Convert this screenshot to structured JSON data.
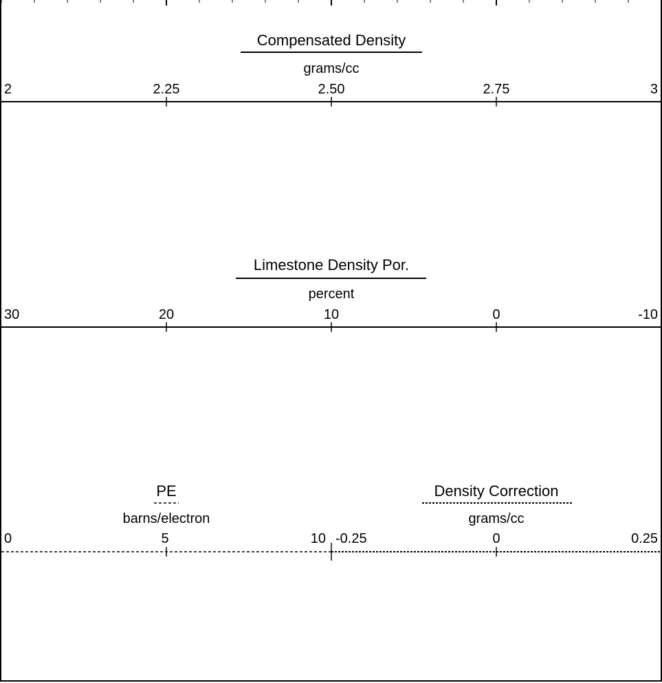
{
  "colors": {
    "line": "#000000",
    "background": "#ffffff"
  },
  "chart_data": [
    {
      "type": "log-track-header",
      "curve": "Compensated Density",
      "title": "Compensated Density",
      "unit": "grams/cc",
      "line_style": "solid",
      "scale": [
        2,
        3
      ],
      "tick_labels": [
        "2",
        "2.25",
        "2.50",
        "2.75",
        "3"
      ]
    },
    {
      "type": "log-track-header",
      "curve": "Limestone Density Por.",
      "title": "Limestone Density Por.",
      "unit": "percent",
      "line_style": "solid",
      "scale": [
        30,
        -10
      ],
      "tick_labels": [
        "30",
        "20",
        "10",
        "0",
        "-10"
      ]
    },
    {
      "type": "log-track-header",
      "curve": "PE",
      "title": "PE",
      "unit": "barns/electron",
      "line_style": "dashed",
      "scale": [
        0,
        10
      ],
      "tick_labels": [
        "0",
        "5",
        "10"
      ]
    },
    {
      "type": "log-track-header",
      "curve": "Density Correction",
      "title": "Density Correction",
      "unit": "grams/cc",
      "line_style": "dotted",
      "scale": [
        -0.25,
        0.25
      ],
      "tick_labels": [
        "-0.25",
        "0",
        "0.25"
      ]
    }
  ]
}
